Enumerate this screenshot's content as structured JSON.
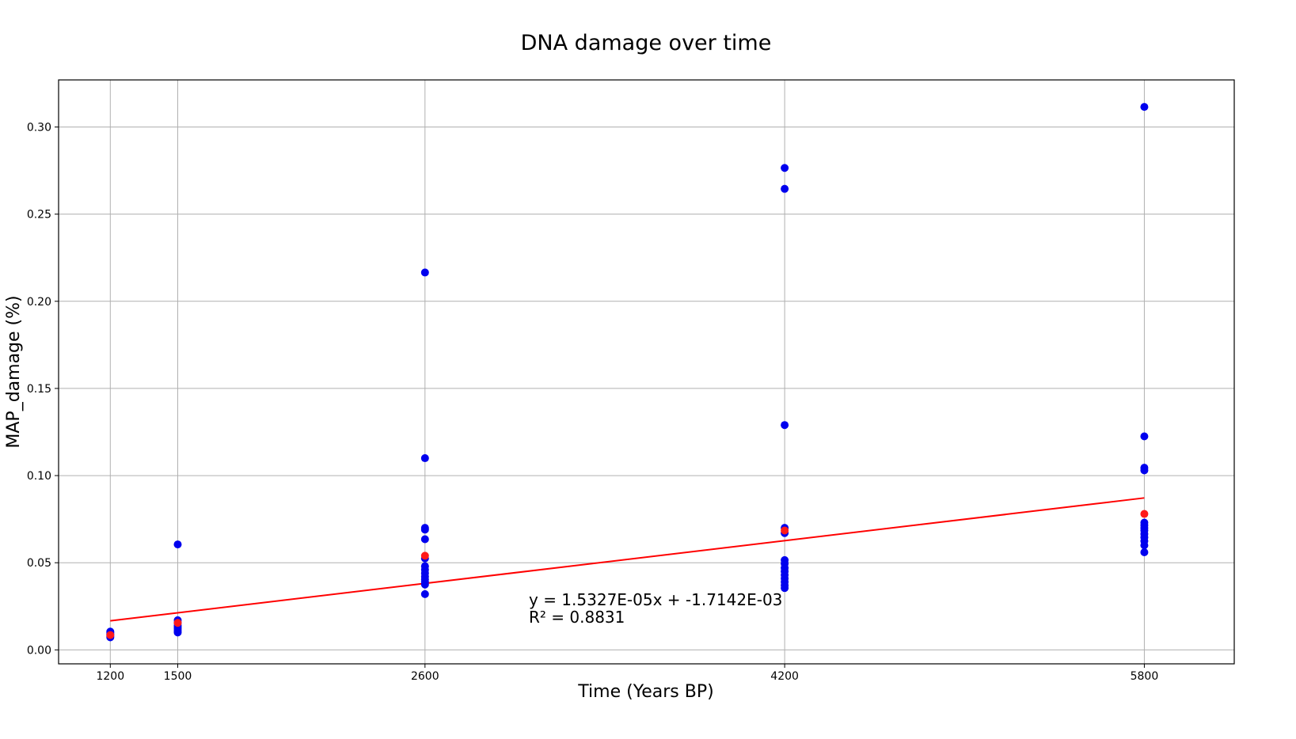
{
  "chart_data": {
    "type": "scatter",
    "title": "DNA damage over time",
    "xlabel": "Time (Years BP)",
    "ylabel": "MAP_damage (%)",
    "xlim": [
      970,
      6200
    ],
    "ylim": [
      -0.008,
      0.327
    ],
    "xticks": [
      1200,
      1500,
      2600,
      4200,
      5800
    ],
    "yticks": [
      0.0,
      0.05,
      0.1,
      0.15,
      0.2,
      0.25,
      0.3
    ],
    "ytick_labels": [
      "0.00",
      "0.05",
      "0.10",
      "0.15",
      "0.20",
      "0.25",
      "0.30"
    ],
    "grid": true,
    "colors": {
      "points": "#0000ee",
      "mean_points": "#ff1a1a",
      "fit_line": "#ff0000"
    },
    "series": [
      {
        "marker_color": "#0000ee",
        "points": [
          [
            1200,
            0.0105
          ],
          [
            1200,
            0.0098
          ],
          [
            1200,
            0.0092
          ],
          [
            1200,
            0.0085
          ],
          [
            1200,
            0.0078
          ],
          [
            1200,
            0.0072
          ],
          [
            1500,
            0.0605
          ],
          [
            1500,
            0.017
          ],
          [
            1500,
            0.0155
          ],
          [
            1500,
            0.014
          ],
          [
            1500,
            0.013
          ],
          [
            1500,
            0.012
          ],
          [
            1500,
            0.011
          ],
          [
            1500,
            0.01
          ],
          [
            2600,
            0.2165
          ],
          [
            2600,
            0.11
          ],
          [
            2600,
            0.07
          ],
          [
            2600,
            0.069
          ],
          [
            2600,
            0.0635
          ],
          [
            2600,
            0.0525
          ],
          [
            2600,
            0.048
          ],
          [
            2600,
            0.046
          ],
          [
            2600,
            0.044
          ],
          [
            2600,
            0.042
          ],
          [
            2600,
            0.0405
          ],
          [
            2600,
            0.039
          ],
          [
            2600,
            0.0375
          ],
          [
            2600,
            0.032
          ],
          [
            4200,
            0.2765
          ],
          [
            4200,
            0.2645
          ],
          [
            4200,
            0.129
          ],
          [
            4200,
            0.07
          ],
          [
            4200,
            0.067
          ],
          [
            4200,
            0.0515
          ],
          [
            4200,
            0.0495
          ],
          [
            4200,
            0.047
          ],
          [
            4200,
            0.045
          ],
          [
            4200,
            0.043
          ],
          [
            4200,
            0.041
          ],
          [
            4200,
            0.039
          ],
          [
            4200,
            0.037
          ],
          [
            4200,
            0.0355
          ],
          [
            5800,
            0.3115
          ],
          [
            5800,
            0.1225
          ],
          [
            5800,
            0.1045
          ],
          [
            5800,
            0.103
          ],
          [
            5800,
            0.073
          ],
          [
            5800,
            0.0715
          ],
          [
            5800,
            0.07
          ],
          [
            5800,
            0.0685
          ],
          [
            5800,
            0.0665
          ],
          [
            5800,
            0.0645
          ],
          [
            5800,
            0.0625
          ],
          [
            5800,
            0.06
          ],
          [
            5800,
            0.056
          ]
        ]
      },
      {
        "marker_color": "#ff1a1a",
        "points": [
          [
            1200,
            0.0085
          ],
          [
            1500,
            0.0155
          ],
          [
            2600,
            0.054
          ],
          [
            4200,
            0.0685
          ],
          [
            5800,
            0.078
          ]
        ]
      }
    ],
    "fit_line": {
      "x": [
        1200,
        5800
      ],
      "slope": 1.5327e-05,
      "intercept": -0.0017142
    },
    "annotation": {
      "line1": "y = 1.5327E-05x + -1.7142E-03",
      "line2": "R² = 0.8831"
    }
  }
}
